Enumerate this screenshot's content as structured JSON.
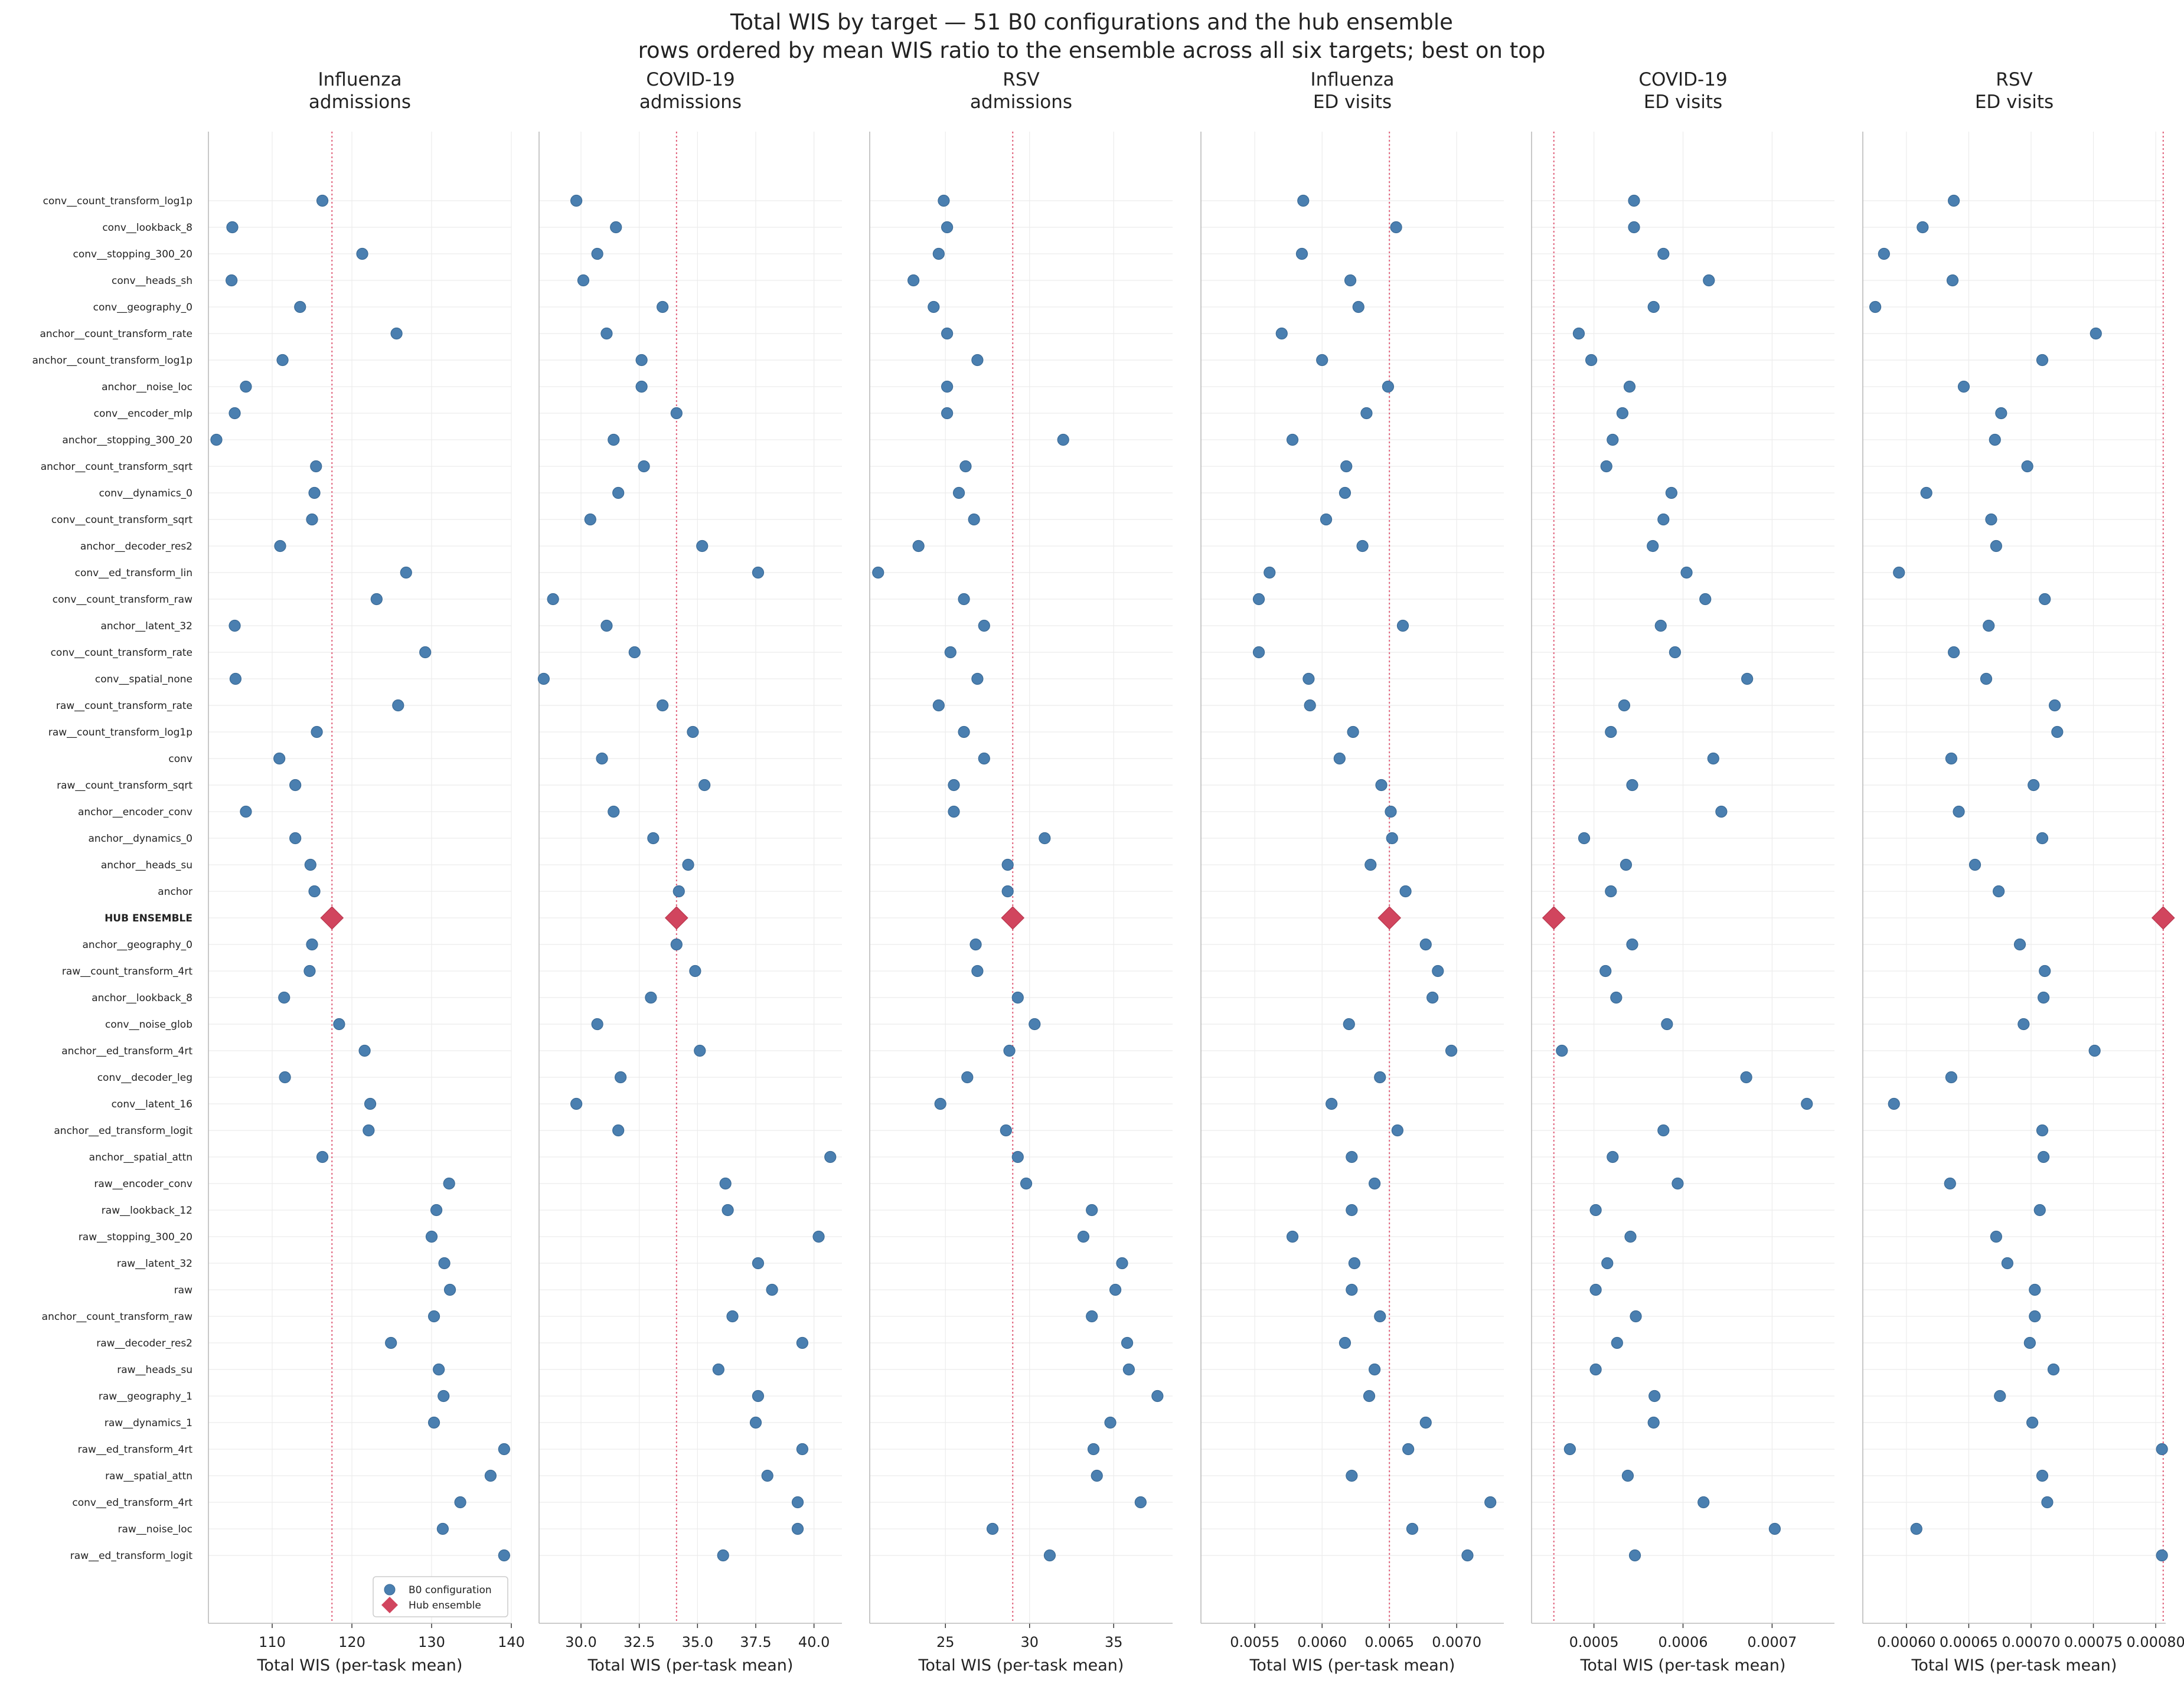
{
  "chart_data": {
    "type": "scatter",
    "title": "Total WIS by target — 51 B0 configurations and the hub ensemble",
    "subtitle": "rows ordered by mean WIS ratio to the ensemble across all six targets; best on top",
    "xlabel": "Total WIS (per-task mean)",
    "grid": true,
    "legend_placement": "lower-right of first panel",
    "legend": [
      "B0 configuration",
      "Hub ensemble"
    ],
    "colors": {
      "config": "#4a7fb0",
      "ensemble": "#d1455e",
      "reference_line": "#e0607a",
      "label_ensemble": "#c8324e"
    },
    "rows": [
      "conv__count_transform_log1p",
      "conv__lookback_8",
      "conv__stopping_300_20",
      "conv__heads_sh",
      "conv__geography_0",
      "anchor__count_transform_rate",
      "anchor__count_transform_log1p",
      "anchor__noise_loc",
      "conv__encoder_mlp",
      "anchor__stopping_300_20",
      "anchor__count_transform_sqrt",
      "conv__dynamics_0",
      "conv__count_transform_sqrt",
      "anchor__decoder_res2",
      "conv__ed_transform_lin",
      "conv__count_transform_raw",
      "anchor__latent_32",
      "conv__count_transform_rate",
      "conv__spatial_none",
      "raw__count_transform_rate",
      "raw__count_transform_log1p",
      "conv",
      "raw__count_transform_sqrt",
      "anchor__encoder_conv",
      "anchor__dynamics_0",
      "anchor__heads_su",
      "anchor",
      "HUB ENSEMBLE",
      "anchor__geography_0",
      "raw__count_transform_4rt",
      "anchor__lookback_8",
      "conv__noise_glob",
      "anchor__ed_transform_4rt",
      "conv__decoder_leg",
      "conv__latent_16",
      "anchor__ed_transform_logit",
      "anchor__spatial_attn",
      "raw__encoder_conv",
      "raw__lookback_12",
      "raw__stopping_300_20",
      "raw__latent_32",
      "raw",
      "anchor__count_transform_raw",
      "raw__decoder_res2",
      "raw__heads_su",
      "raw__geography_1",
      "raw__dynamics_1",
      "raw__ed_transform_4rt",
      "raw__spatial_attn",
      "conv__ed_transform_4rt",
      "raw__noise_loc",
      "raw__ed_transform_logit"
    ],
    "ensemble_label": "HUB ENSEMBLE",
    "panels": [
      {
        "title": [
          "Influenza",
          "admissions"
        ],
        "xlim": [
          102,
          140
        ],
        "ticks": [
          110,
          120,
          130,
          140
        ],
        "tick_labels": [
          "110",
          "120",
          "130",
          "140"
        ],
        "ensemble": 117.5,
        "values": [
          116.3,
          105,
          121.3,
          104.9,
          113.5,
          125.6,
          111.3,
          106.7,
          105.3,
          103,
          115.5,
          115.3,
          115,
          111,
          126.8,
          123.1,
          105.3,
          129.2,
          105.4,
          125.8,
          115.6,
          110.9,
          112.9,
          106.7,
          112.9,
          114.8,
          115.3,
          null,
          115,
          114.7,
          111.5,
          118.4,
          121.6,
          111.6,
          122.3,
          122.1,
          116.3,
          132.2,
          130.6,
          130,
          131.6,
          132.3,
          130.3,
          124.9,
          130.9,
          131.5,
          130.3,
          139.1,
          137.4,
          133.6,
          131.4,
          139.1
        ]
      },
      {
        "title": [
          "COVID-19",
          "admissions"
        ],
        "xlim": [
          28.2,
          41.2
        ],
        "ticks": [
          30,
          32.5,
          35,
          37.5,
          40
        ],
        "tick_labels": [
          "30.0",
          "32.5",
          "35.0",
          "37.5",
          "40.0"
        ],
        "ensemble": 34.1,
        "values": [
          29.8,
          31.5,
          30.7,
          30.1,
          33.5,
          31.1,
          32.6,
          32.6,
          34.1,
          31.4,
          32.7,
          31.6,
          30.4,
          35.2,
          37.6,
          28.8,
          31.1,
          32.3,
          28.4,
          33.5,
          34.8,
          30.9,
          35.3,
          31.4,
          33.1,
          34.6,
          34.2,
          null,
          34.1,
          34.9,
          33,
          30.7,
          35.1,
          31.7,
          29.8,
          31.6,
          40.7,
          36.2,
          36.3,
          40.2,
          37.6,
          38.2,
          36.5,
          39.5,
          35.9,
          37.6,
          37.5,
          39.5,
          38,
          39.3,
          39.3,
          36.1
        ]
      },
      {
        "title": [
          "RSV",
          "admissions"
        ],
        "xlim": [
          20.5,
          38.5
        ],
        "ticks": [
          25,
          30,
          35
        ],
        "tick_labels": [
          "25",
          "30",
          "35"
        ],
        "ensemble": 29,
        "values": [
          24.9,
          25.1,
          24.6,
          23.1,
          24.3,
          25.1,
          26.9,
          25.1,
          25.1,
          32,
          26.2,
          25.8,
          26.7,
          23.4,
          21,
          26.1,
          27.3,
          25.3,
          26.9,
          24.6,
          26.1,
          27.3,
          25.5,
          25.5,
          30.9,
          28.7,
          28.7,
          null,
          26.8,
          26.9,
          29.3,
          30.3,
          28.8,
          26.3,
          24.7,
          28.6,
          29.3,
          29.8,
          33.7,
          33.2,
          35.5,
          35.1,
          33.7,
          35.8,
          35.9,
          37.6,
          34.8,
          33.8,
          34,
          36.6,
          27.8,
          31.2
        ]
      },
      {
        "title": [
          "Influenza",
          "ED visits"
        ],
        "xlim": [
          0.0051,
          0.00735
        ],
        "ticks": [
          0.0055,
          0.006,
          0.0065,
          0.007
        ],
        "tick_labels": [
          "0.0055",
          "0.0060",
          "0.0065",
          "0.0070"
        ],
        "ensemble": 0.0065,
        "values": [
          0.00586,
          0.00655,
          0.00585,
          0.00621,
          0.00627,
          0.0057,
          0.006,
          0.00649,
          0.00633,
          0.00578,
          0.00618,
          0.00617,
          0.00603,
          0.0063,
          0.00561,
          0.00553,
          0.0066,
          0.00553,
          0.0059,
          0.00591,
          0.00623,
          0.00613,
          0.00644,
          0.00651,
          0.00652,
          0.00636,
          0.00662,
          null,
          0.00677,
          0.00686,
          0.00682,
          0.0062,
          0.00696,
          0.00643,
          0.00607,
          0.00656,
          0.00622,
          0.00639,
          0.00622,
          0.00578,
          0.00624,
          0.00622,
          0.00643,
          0.00617,
          0.00639,
          0.00635,
          0.00677,
          0.00664,
          0.00622,
          0.00725,
          0.00667,
          0.00708
        ]
      },
      {
        "title": [
          "COVID-19",
          "ED visits"
        ],
        "xlim": [
          0.00043,
          0.00077
        ],
        "ticks": [
          0.0005,
          0.0006,
          0.0007
        ],
        "tick_labels": [
          "0.0005",
          "0.0006",
          "0.0007"
        ],
        "ensemble": 0.000455,
        "values": [
          0.000545,
          0.000545,
          0.000578,
          0.000629,
          0.000567,
          0.000483,
          0.000497,
          0.00054,
          0.000532,
          0.000521,
          0.000514,
          0.000587,
          0.000578,
          0.000566,
          0.000604,
          0.000625,
          0.000575,
          0.000591,
          0.000672,
          0.000534,
          0.000519,
          0.000634,
          0.000543,
          0.000643,
          0.000489,
          0.000536,
          0.000519,
          null,
          0.000543,
          0.000513,
          0.000525,
          0.000582,
          0.000464,
          0.000671,
          0.000739,
          0.000578,
          0.000521,
          0.000594,
          0.000502,
          0.000541,
          0.000515,
          0.000502,
          0.000547,
          0.000526,
          0.000502,
          0.000568,
          0.000567,
          0.000473,
          0.000538,
          0.000623,
          0.000703,
          0.000546
        ]
      },
      {
        "title": [
          "RSV",
          "ED visits"
        ],
        "xlim": [
          0.000565,
          0.000808
        ],
        "ticks": [
          0.0006,
          0.00065,
          0.0007,
          0.00075,
          0.0008
        ],
        "tick_labels": [
          "0.00060",
          "0.00065",
          "0.00070",
          "0.00075",
          "0.00080"
        ],
        "ensemble": 0.000806,
        "values": [
          0.000638,
          0.000613,
          0.000582,
          0.000637,
          0.000575,
          0.000752,
          0.000709,
          0.000646,
          0.000676,
          0.000671,
          0.000697,
          0.000616,
          0.000668,
          0.000672,
          0.000594,
          0.000711,
          0.000666,
          0.000638,
          0.000664,
          0.000719,
          0.000721,
          0.000636,
          0.000702,
          0.000642,
          0.000709,
          0.000655,
          0.000674,
          null,
          0.000691,
          0.000711,
          0.00071,
          0.000694,
          0.000751,
          0.000636,
          0.00059,
          0.000709,
          0.00071,
          0.000635,
          0.000707,
          0.000672,
          0.000681,
          0.000703,
          0.000703,
          0.000699,
          0.000718,
          0.000675,
          0.000701,
          0.000805,
          0.000709,
          0.000713,
          0.000608,
          0.000805
        ]
      }
    ]
  }
}
